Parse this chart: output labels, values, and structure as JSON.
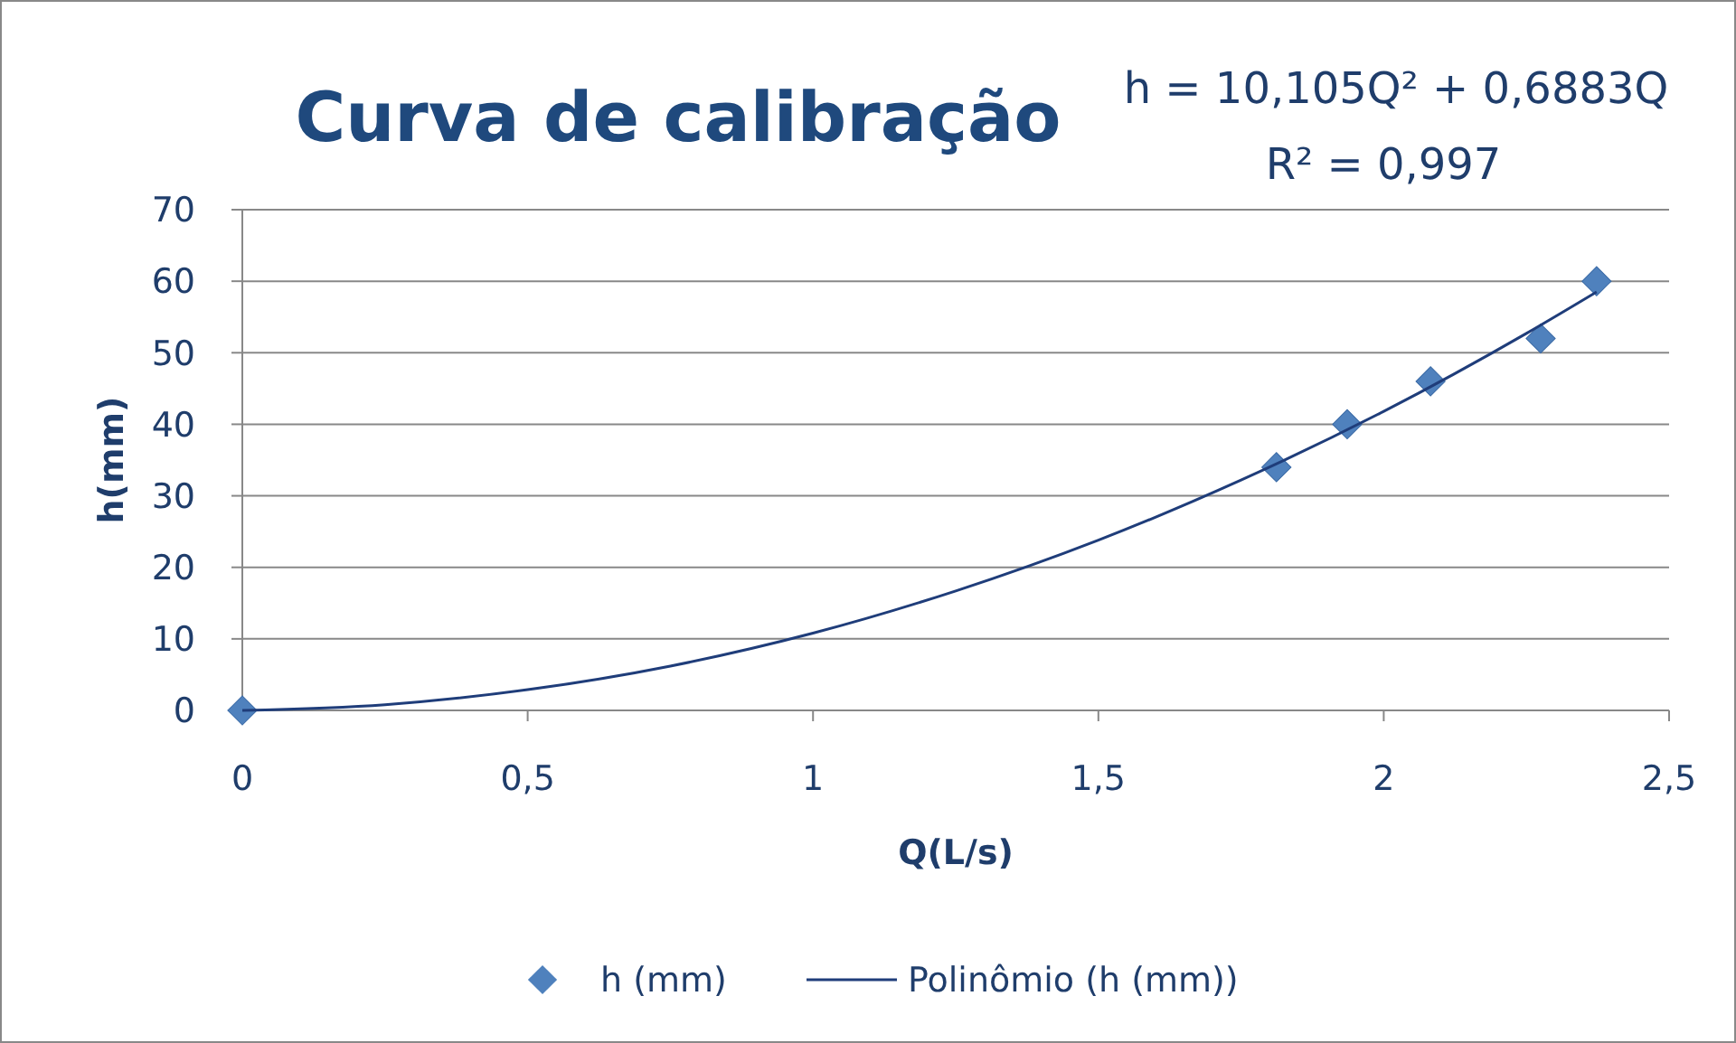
{
  "chart_data": {
    "type": "scatter",
    "title": "Curva de calibração",
    "xlabel": "Q(L/s)",
    "ylabel": "h(mm)",
    "annotations": [
      "h = 10,105Q² + 0,6883Q",
      "R² = 0,997"
    ],
    "xlim": [
      0,
      2.5
    ],
    "xticks": [
      0,
      {
        "value": 0.5,
        "label": "0,5"
      },
      1,
      {
        "value": 1.5,
        "label": "1,5"
      },
      2,
      {
        "value": 2.5,
        "label": "2,5"
      }
    ],
    "ylim": [
      0,
      70
    ],
    "yticks": [
      0,
      10,
      20,
      30,
      40,
      50,
      60,
      70
    ],
    "grid": "y",
    "legend": "bottom",
    "series": [
      {
        "name": "h (mm)",
        "marker": "diamond",
        "color": "#4f81bd",
        "x": [
          0,
          1.812,
          1.936,
          2.082,
          2.275,
          2.373
        ],
        "values": [
          0,
          34,
          40,
          46,
          52,
          60
        ]
      },
      {
        "name": "Polinômio (h (mm))",
        "type": "line",
        "marker": "none",
        "color": "#1f3d7a",
        "x": [
          0,
          0.25,
          0.5,
          0.75,
          1,
          1.25,
          1.5,
          1.75,
          2,
          2.25,
          2.373
        ],
        "values": [
          0,
          0.8,
          2.9,
          6.2,
          10.8,
          16.7,
          23.8,
          32.2,
          41.8,
          52.7,
          58.5
        ]
      }
    ]
  }
}
